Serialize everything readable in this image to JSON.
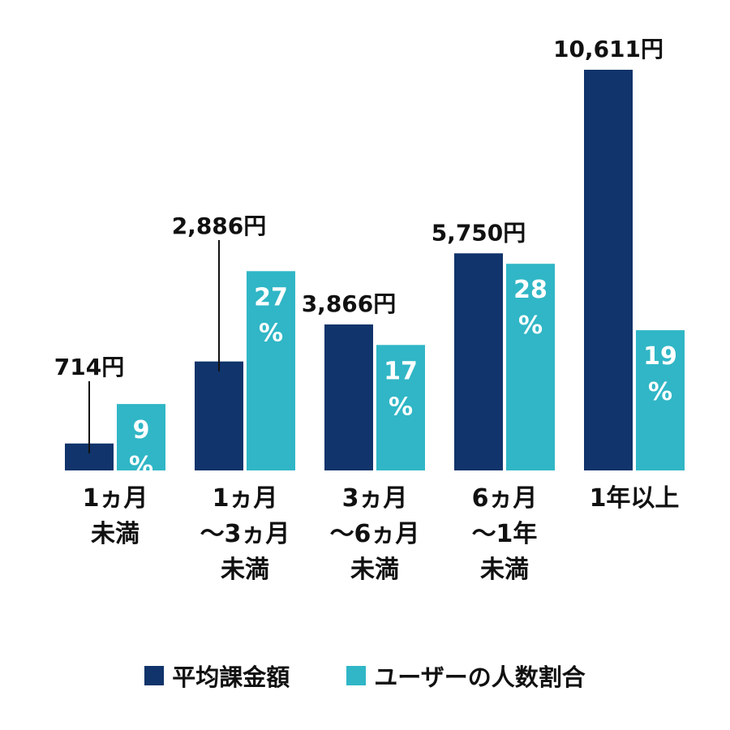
{
  "colors": {
    "avg": "#10346b",
    "ratio": "#30b6c6"
  },
  "chart_data": {
    "type": "bar",
    "categories": [
      [
        "1ヵ月",
        "未満"
      ],
      [
        "1ヵ月",
        "〜3ヵ月",
        "未満"
      ],
      [
        "3ヵ月",
        "〜6ヵ月",
        "未満"
      ],
      [
        "6ヵ月",
        "〜1年",
        "未満"
      ],
      [
        "1年以上"
      ]
    ],
    "series": [
      {
        "name": "平均課金額",
        "values": [
          714,
          2886,
          3866,
          5750,
          10611
        ],
        "labels": [
          "714円",
          "2,886円",
          "3,866円",
          "5,750円",
          "10,611円"
        ]
      },
      {
        "name": "ユーザーの人数割合",
        "values": [
          9,
          27,
          17,
          28,
          19
        ],
        "labels": [
          [
            "9",
            "%"
          ],
          [
            "27",
            "%"
          ],
          [
            "17",
            "%"
          ],
          [
            "28",
            "%"
          ],
          [
            "19",
            "%"
          ]
        ]
      }
    ],
    "legend_position": "bottom"
  }
}
